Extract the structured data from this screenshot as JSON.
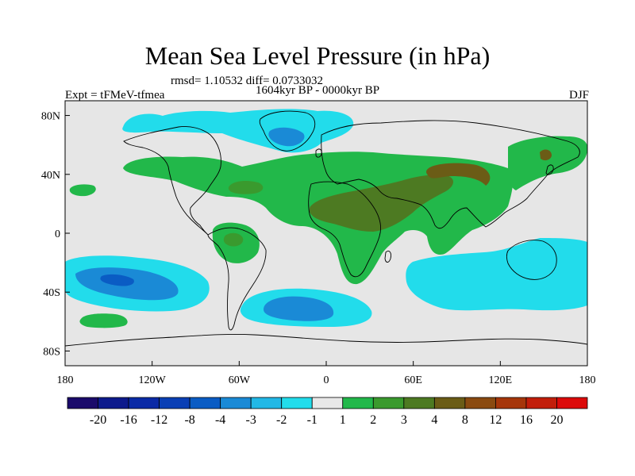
{
  "title": "Mean Sea Level Pressure (in hPa)",
  "stats": "rmsd= 1.10532 diff= 0.0733032",
  "experiment": "Expt = tFMeV-tfmea",
  "period": "1604kyr BP - 0000kyr BP",
  "season": "DJF",
  "map": {
    "ocean_color": "#e6e6e6",
    "lon_labels": [
      "180",
      "120W",
      "60W",
      "0",
      "60E",
      "120E",
      "180"
    ],
    "lat_labels": [
      "80N",
      "40N",
      "0",
      "40S",
      "80S"
    ]
  },
  "colorbar": {
    "colors": [
      "#1a0a6b",
      "#0d1a8c",
      "#0a2aa6",
      "#0a3fb5",
      "#0a5cc4",
      "#1a8ad6",
      "#22b8e6",
      "#22dceb",
      "#e8e8e8",
      "#22b84a",
      "#3a9a2e",
      "#4d7a22",
      "#6b5c16",
      "#8a4a10",
      "#a6360a",
      "#c21e0a",
      "#dc0a0a"
    ],
    "labels": [
      "-20",
      "-16",
      "-12",
      "-8",
      "-4",
      "-3",
      "-2",
      "-1",
      "1",
      "2",
      "3",
      "4",
      "8",
      "12",
      "16",
      "20"
    ]
  }
}
